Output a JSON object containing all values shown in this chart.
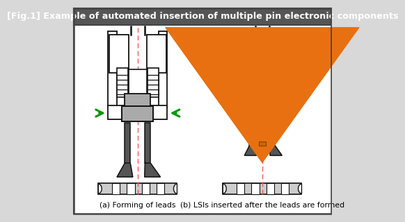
{
  "title": "[Fig.1] Example of automated insertion of multiple pin electronic components",
  "title_bg": "#555555",
  "title_color": "#ffffff",
  "fig_bg": "#d8d8d8",
  "label_a": "(a) Forming of leads",
  "label_b": "(b) LSIs inserted after the leads are formed",
  "green": "#009900",
  "orange": "#e87010",
  "gray_mid": "#aaaaaa",
  "gray_dark": "#555555",
  "gray_light": "#cccccc",
  "white": "#ffffff",
  "red_dash": "#ff5555",
  "black": "#111111",
  "border_color": "#444444"
}
